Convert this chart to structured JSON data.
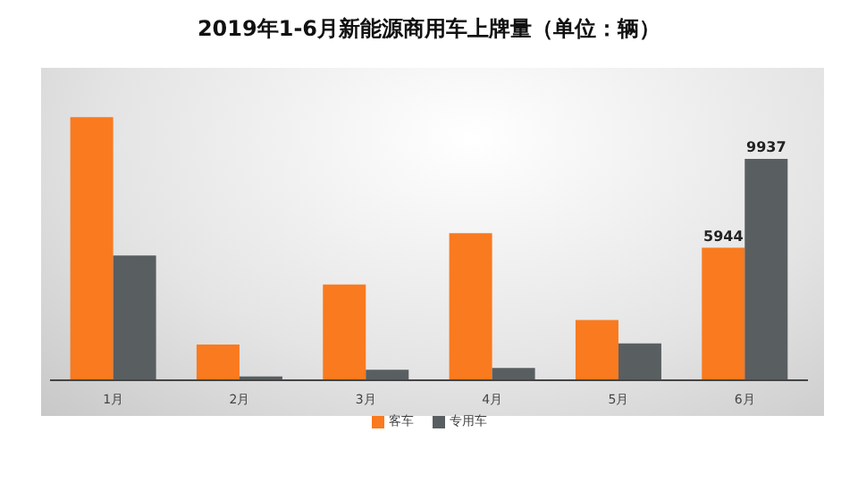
{
  "chart_data": {
    "type": "bar",
    "title": "2019年1-6月新能源商用车上牌量（单位：辆）",
    "categories": [
      "1月",
      "2月",
      "3月",
      "4月",
      "5月",
      "6月"
    ],
    "series": [
      {
        "name": "客车",
        "color": "#f97a1f",
        "values": [
          11800,
          1600,
          4300,
          6600,
          2700,
          5944
        ],
        "value_labels": [
          null,
          null,
          null,
          null,
          null,
          "5944"
        ]
      },
      {
        "name": "专用车",
        "color": "#595e61",
        "values": [
          5600,
          170,
          470,
          550,
          1650,
          9937
        ],
        "value_labels": [
          null,
          null,
          null,
          null,
          null,
          "9937"
        ]
      }
    ],
    "grid": false,
    "legend": "bottom"
  }
}
